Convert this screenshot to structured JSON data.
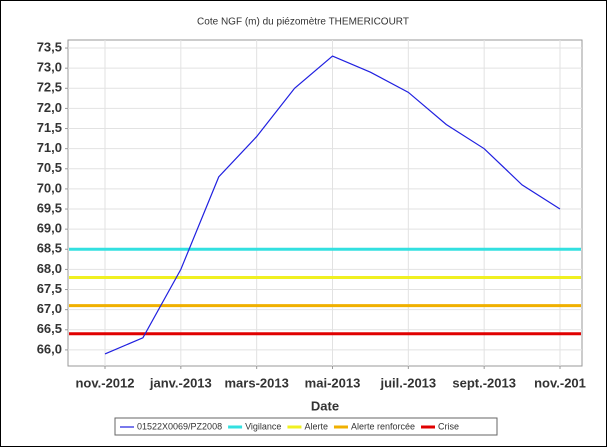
{
  "chart_data": {
    "type": "line",
    "title": "Cote NGF (m) du piézomètre THEMERICOURT",
    "x_label": "Date",
    "categories": [
      "nov.-2012",
      null,
      "janv.-2013",
      null,
      "mars-2013",
      null,
      "mai-2013",
      null,
      "juil.-2013",
      null,
      "sept.-2013",
      null,
      "nov.-201"
    ],
    "series": [
      {
        "name": "01522X0069/PZ2008",
        "color": "#2020e0",
        "values": [
          65.9,
          66.3,
          68.0,
          70.3,
          71.3,
          72.5,
          73.3,
          72.9,
          72.4,
          71.6,
          71.0,
          70.1,
          69.5
        ]
      }
    ],
    "thresholds": [
      {
        "name": "Vigilance",
        "color": "#33e0e0",
        "value": 68.5
      },
      {
        "name": "Alerte",
        "color": "#f0f020",
        "value": 67.8
      },
      {
        "name": "Alerte renforcée",
        "color": "#f0b000",
        "value": 67.1
      },
      {
        "name": "Crise",
        "color": "#e00000",
        "value": 66.4
      }
    ],
    "ylim": [
      65.6,
      73.7
    ],
    "yticks": [
      {
        "value": 66.0,
        "label": "66,0"
      },
      {
        "value": 66.5,
        "label": "66,5"
      },
      {
        "value": 67.0,
        "label": "67,0"
      },
      {
        "value": 67.5,
        "label": "67,5"
      },
      {
        "value": 68.0,
        "label": "68,0"
      },
      {
        "value": 68.5,
        "label": "68,5"
      },
      {
        "value": 69.0,
        "label": "69,0"
      },
      {
        "value": 69.5,
        "label": "69,5"
      },
      {
        "value": 70.0,
        "label": "70,0"
      },
      {
        "value": 70.5,
        "label": "70,5"
      },
      {
        "value": 71.0,
        "label": "71,0"
      },
      {
        "value": 71.5,
        "label": "71,5"
      },
      {
        "value": 72.0,
        "label": "72,0"
      },
      {
        "value": 72.5,
        "label": "72,5"
      },
      {
        "value": 73.0,
        "label": "73,0"
      },
      {
        "value": 73.5,
        "label": "73,5"
      }
    ],
    "grid": true
  }
}
